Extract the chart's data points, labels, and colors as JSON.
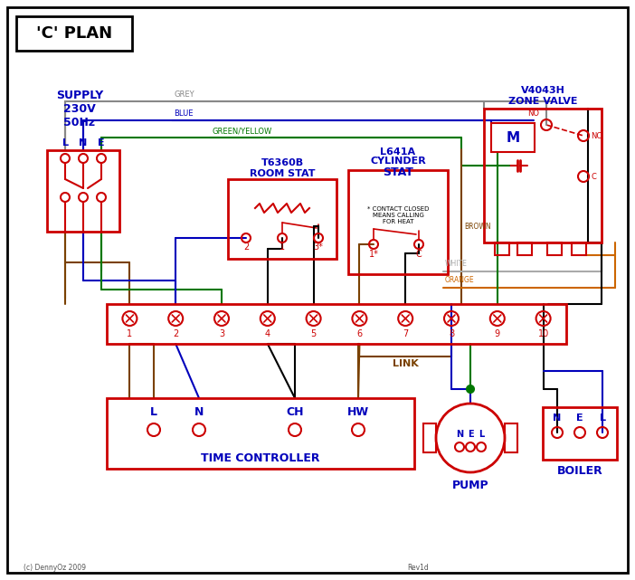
{
  "RED": "#cc0000",
  "BLUE": "#0000bb",
  "GREEN": "#007700",
  "GREY": "#888888",
  "BROWN": "#7a4100",
  "ORANGE": "#cc6600",
  "BLACK": "#000000",
  "WHITE_WIRE": "#aaaaaa",
  "title": "'C' PLAN",
  "supply_line1": "SUPPLY",
  "supply_line2": "230V",
  "supply_line3": "50Hz",
  "zone_valve_line1": "V4043H",
  "zone_valve_line2": "ZONE VALVE",
  "room_stat_line1": "T6360B",
  "room_stat_line2": "ROOM STAT",
  "cyl_stat_line1": "L641A",
  "cyl_stat_line2": "CYLINDER",
  "cyl_stat_line3": "STAT",
  "contact_note": "* CONTACT CLOSED\nMEANS CALLING\nFOR HEAT",
  "time_ctrl_label": "TIME CONTROLLER",
  "pump_label": "PUMP",
  "boiler_label": "BOILER",
  "link_label": "LINK",
  "copyright": "(c) DennyOz 2009",
  "rev": "Rev1d",
  "lne_labels": [
    "L",
    "N",
    "E"
  ],
  "tc_term_labels": [
    "L",
    "N",
    "CH",
    "HW"
  ],
  "pump_nel": [
    "N",
    "E",
    "L"
  ],
  "boiler_nel": [
    "N",
    "E",
    "L"
  ]
}
